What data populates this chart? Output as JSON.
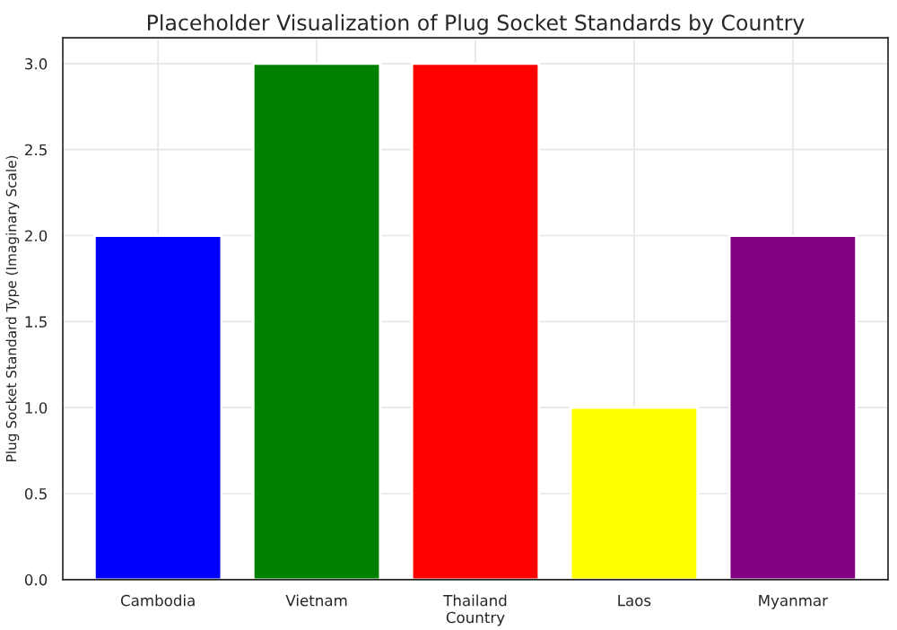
{
  "chart_data": {
    "type": "bar",
    "title": "Placeholder Visualization of Plug Socket Standards by Country",
    "xlabel": "Country",
    "ylabel": "Plug Socket Standard Type (Imaginary Scale)",
    "categories": [
      "Cambodia",
      "Vietnam",
      "Thailand",
      "Laos",
      "Myanmar"
    ],
    "values": [
      2,
      3,
      3,
      1,
      2
    ],
    "colors": [
      "#0000ff",
      "#008000",
      "#ff0000",
      "#ffff00",
      "#800080"
    ],
    "ylim": [
      0,
      3.15
    ],
    "yticks": [
      {
        "value": 0,
        "label": "0.0"
      },
      {
        "value": 0.5,
        "label": "0.5"
      },
      {
        "value": 1,
        "label": "1.0"
      },
      {
        "value": 1.5,
        "label": "1.5"
      },
      {
        "value": 2,
        "label": "2.0"
      },
      {
        "value": 2.5,
        "label": "2.5"
      },
      {
        "value": 3,
        "label": "3.0"
      }
    ],
    "grid": true
  }
}
